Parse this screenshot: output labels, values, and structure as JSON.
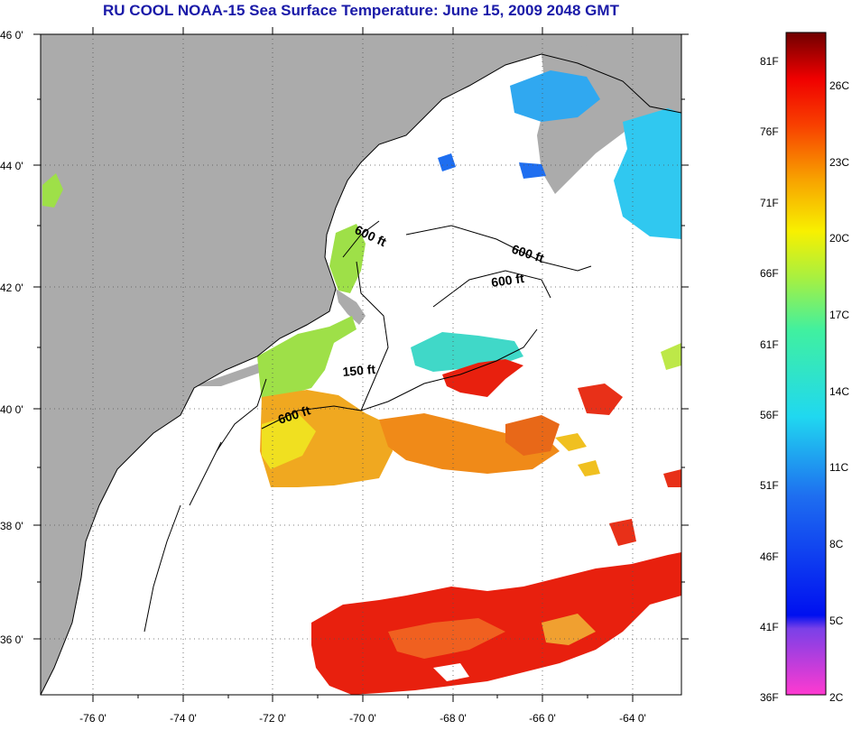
{
  "title": "RU COOL  NOAA-15  Sea Surface Temperature:  June 15, 2009 2048 GMT",
  "lat_labels": [
    "46 0'",
    "44 0'",
    "42 0'",
    "40 0'",
    "38 0'",
    "36 0'"
  ],
  "lon_labels": [
    "-76 0'",
    "-74 0'",
    "-72 0'",
    "-70 0'",
    "-68 0'",
    "-66 0'",
    "-64 0'"
  ],
  "isobaths": [
    {
      "id": "iso-600-gulf-maine",
      "text": "600 ft"
    },
    {
      "id": "iso-600-east",
      "text": "600 ft"
    },
    {
      "id": "iso-600-georges",
      "text": "600 ft"
    },
    {
      "id": "iso-150",
      "text": "150 ft"
    },
    {
      "id": "iso-600-shelf",
      "text": "600 ft"
    }
  ],
  "colorbar": {
    "f_labels": [
      "81F",
      "76F",
      "71F",
      "66F",
      "61F",
      "56F",
      "51F",
      "46F",
      "41F",
      "36F"
    ],
    "c_labels": [
      "26C",
      "23C",
      "20C",
      "17C",
      "14C",
      "11C",
      "8C",
      "5C",
      "2C"
    ]
  },
  "colors": {
    "land": "#ababab",
    "title": "#1a1aa8",
    "warm": "#e8200e",
    "orange": "#f08a18",
    "yellow": "#f0e020",
    "green": "#9ee048",
    "cyan": "#30c8f0",
    "blue": "#1e6ef0"
  }
}
